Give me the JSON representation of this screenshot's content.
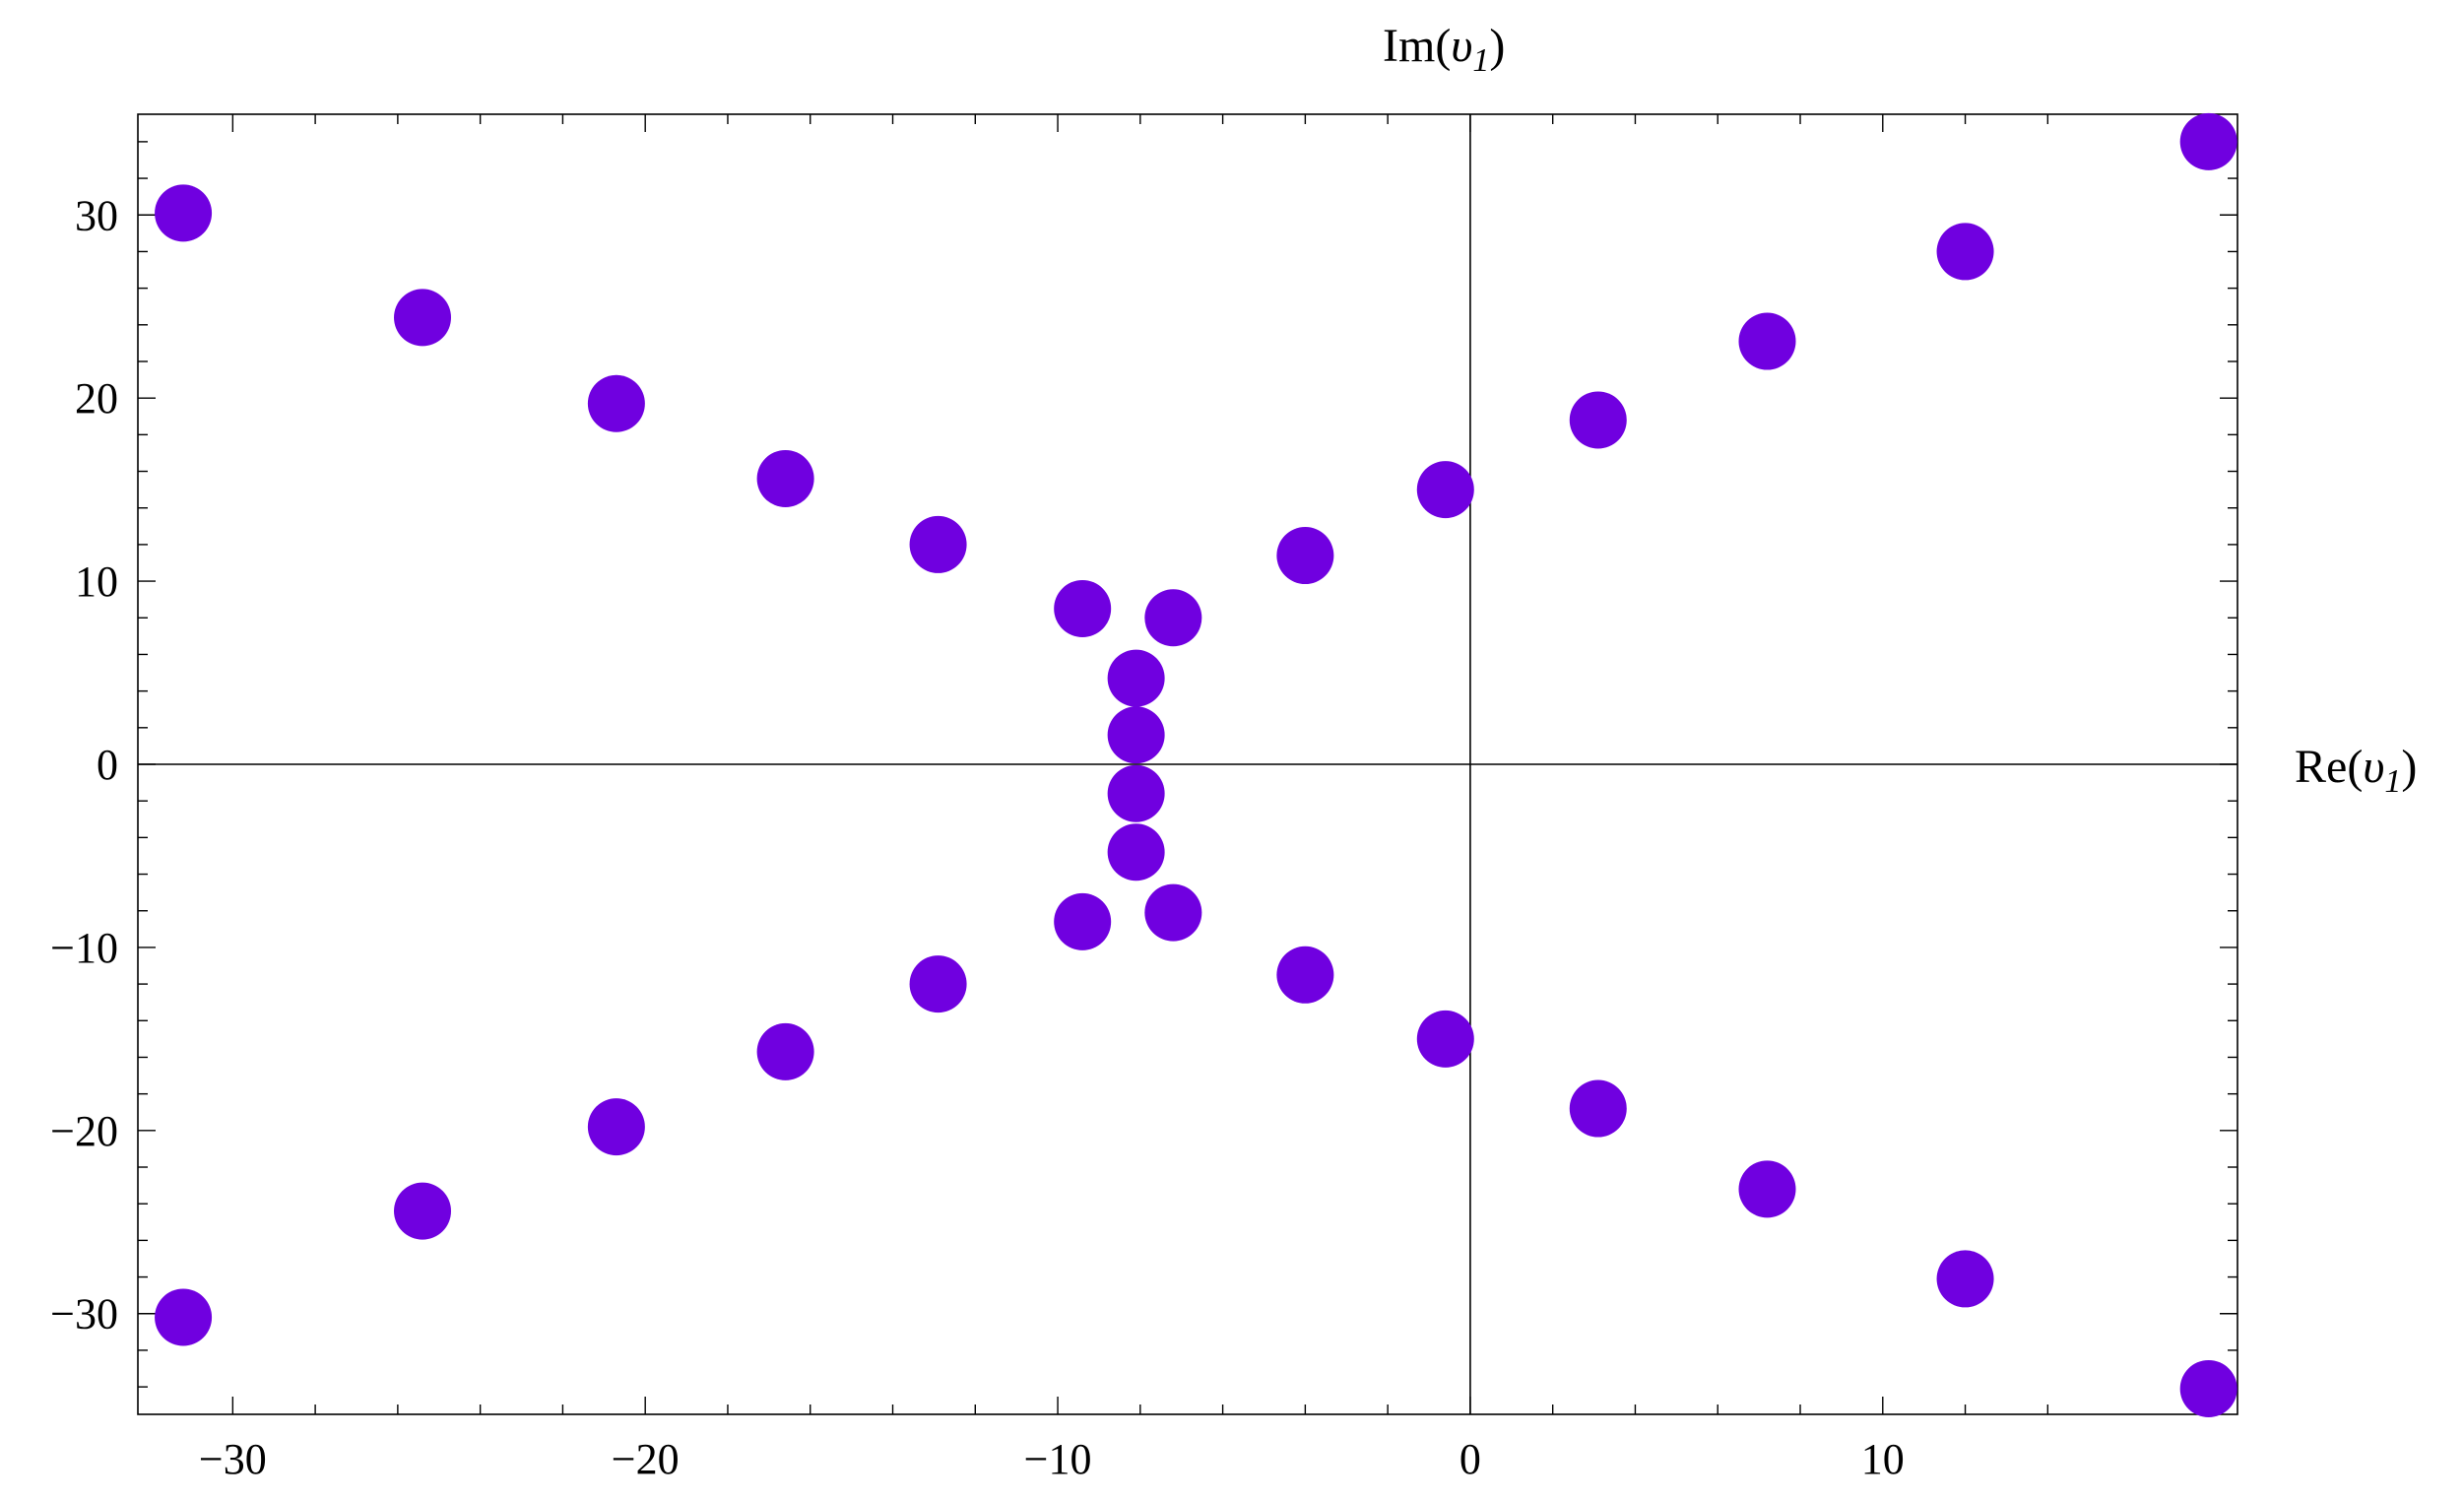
{
  "chart_data": {
    "type": "scatter",
    "title": "",
    "xlabel_prefix": "Re(",
    "ylabel_prefix": "Im(",
    "label_symbol": "υ",
    "label_subscript": "1",
    "label_suffix": ")",
    "xlim": [
      -32.3,
      18.6
    ],
    "ylim": [
      -35.5,
      35.5
    ],
    "xticks": [
      -30,
      -20,
      -10,
      0,
      10
    ],
    "yticks": [
      -30,
      -20,
      -10,
      0,
      10,
      20,
      30
    ],
    "xtick_labels": [
      "−30",
      "−20",
      "−10",
      "0",
      "10"
    ],
    "ytick_labels": [
      "−30",
      "−20",
      "−10",
      "0",
      "10",
      "20",
      "30"
    ],
    "grid": false,
    "frame": true,
    "point_color": "#7000e0",
    "axis_color": "#000000",
    "points": [
      {
        "x": -31.2,
        "y": 30.1
      },
      {
        "x": -25.4,
        "y": 24.4
      },
      {
        "x": -20.7,
        "y": 19.7
      },
      {
        "x": -16.6,
        "y": 15.6
      },
      {
        "x": -12.9,
        "y": 12.0
      },
      {
        "x": -9.4,
        "y": 8.5
      },
      {
        "x": -7.2,
        "y": 8.0
      },
      {
        "x": -8.1,
        "y": 4.7
      },
      {
        "x": -8.1,
        "y": 1.6
      },
      {
        "x": -8.1,
        "y": -1.6
      },
      {
        "x": -8.1,
        "y": -4.8
      },
      {
        "x": -9.4,
        "y": -8.6
      },
      {
        "x": -7.2,
        "y": -8.1
      },
      {
        "x": -12.9,
        "y": -12.0
      },
      {
        "x": -16.6,
        "y": -15.7
      },
      {
        "x": -20.7,
        "y": -19.8
      },
      {
        "x": -25.4,
        "y": -24.4
      },
      {
        "x": -31.2,
        "y": -30.2
      },
      {
        "x": -4.0,
        "y": 11.4
      },
      {
        "x": -0.6,
        "y": 15.0
      },
      {
        "x": 3.1,
        "y": 18.8
      },
      {
        "x": 7.2,
        "y": 23.1
      },
      {
        "x": 12.0,
        "y": 28.0
      },
      {
        "x": 17.9,
        "y": 34.0
      },
      {
        "x": -4.0,
        "y": -11.5
      },
      {
        "x": -0.6,
        "y": -15.0
      },
      {
        "x": 3.1,
        "y": -18.8
      },
      {
        "x": 7.2,
        "y": -23.2
      },
      {
        "x": 12.0,
        "y": -28.1
      },
      {
        "x": 17.9,
        "y": -34.1
      }
    ]
  }
}
